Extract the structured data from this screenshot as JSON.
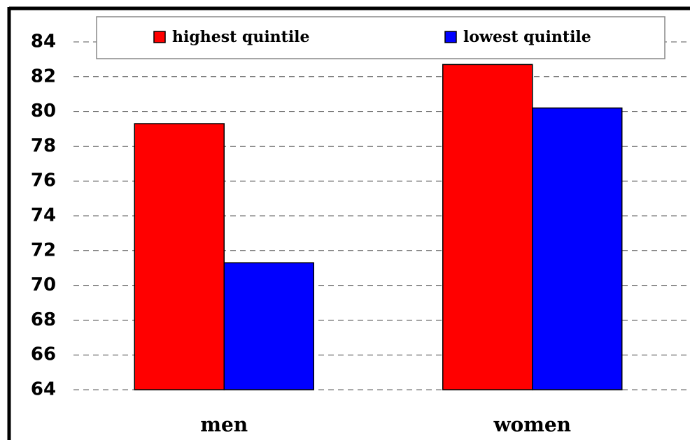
{
  "chart_data": {
    "type": "bar",
    "categories": [
      "men",
      "women"
    ],
    "series": [
      {
        "name": "highest quintile",
        "color": "#ff0000",
        "values": [
          79.3,
          82.7
        ]
      },
      {
        "name": "lowest quintile",
        "color": "#0000ff",
        "values": [
          71.3,
          80.2
        ]
      }
    ],
    "ylim": [
      64,
      84
    ],
    "yticks": [
      64,
      66,
      68,
      70,
      72,
      74,
      76,
      78,
      80,
      82,
      84
    ],
    "grid": true,
    "legend": "top"
  }
}
